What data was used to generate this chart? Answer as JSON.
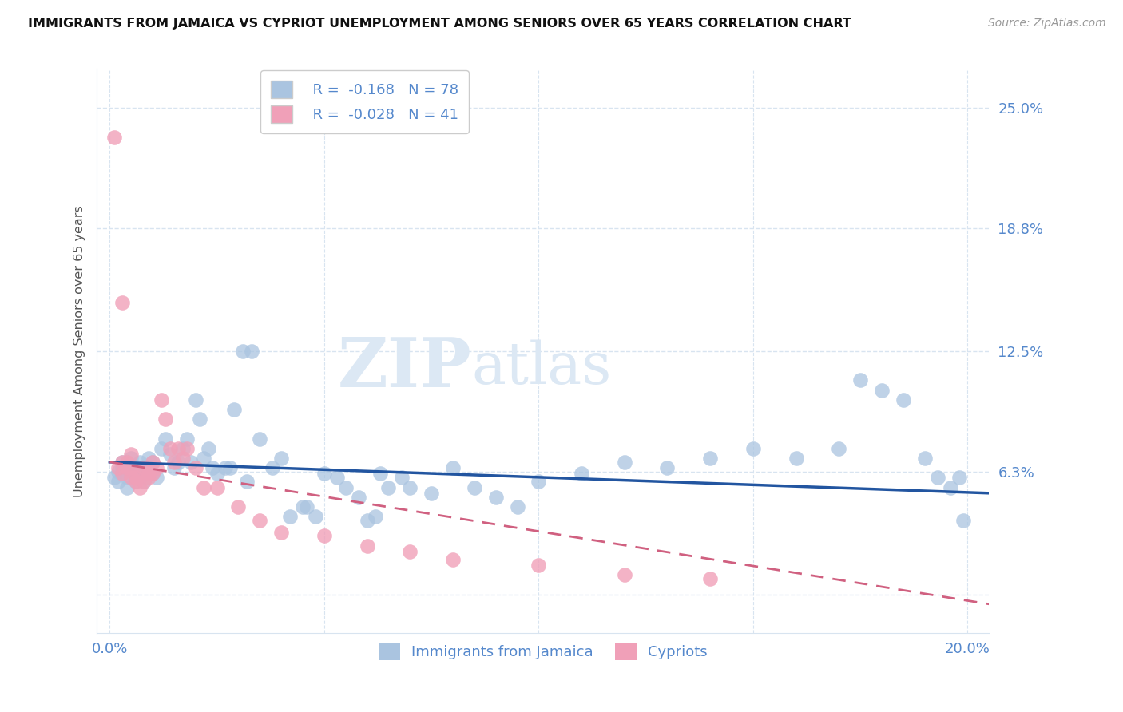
{
  "title": "IMMIGRANTS FROM JAMAICA VS CYPRIOT UNEMPLOYMENT AMONG SENIORS OVER 65 YEARS CORRELATION CHART",
  "source": "Source: ZipAtlas.com",
  "ylabel": "Unemployment Among Seniors over 65 years",
  "xlim": [
    -0.003,
    0.205
  ],
  "ylim": [
    -0.02,
    0.27
  ],
  "ytick_vals": [
    0.0,
    0.063,
    0.125,
    0.188,
    0.25
  ],
  "ytick_labels": [
    "",
    "6.3%",
    "12.5%",
    "18.8%",
    "25.0%"
  ],
  "xtick_vals": [
    0.0,
    0.2
  ],
  "xtick_labels": [
    "0.0%",
    "20.0%"
  ],
  "legend_r1": "R =  -0.168",
  "legend_n1": "N = 78",
  "legend_r2": "R =  -0.028",
  "legend_n2": "N = 41",
  "blue_color": "#aac4e0",
  "blue_line_color": "#2255a0",
  "pink_color": "#f0a0b8",
  "pink_line_color": "#d06080",
  "tick_label_color": "#5588cc",
  "grid_color": "#d8e4f0",
  "watermark_color": "#dce8f4",
  "blue_scatter_x": [
    0.001,
    0.002,
    0.002,
    0.003,
    0.003,
    0.004,
    0.004,
    0.005,
    0.005,
    0.006,
    0.006,
    0.007,
    0.007,
    0.008,
    0.008,
    0.009,
    0.009,
    0.01,
    0.01,
    0.011,
    0.012,
    0.013,
    0.014,
    0.015,
    0.016,
    0.017,
    0.018,
    0.019,
    0.02,
    0.021,
    0.022,
    0.023,
    0.024,
    0.025,
    0.027,
    0.029,
    0.031,
    0.033,
    0.035,
    0.038,
    0.04,
    0.042,
    0.045,
    0.048,
    0.05,
    0.053,
    0.055,
    0.058,
    0.06,
    0.063,
    0.065,
    0.068,
    0.07,
    0.075,
    0.08,
    0.085,
    0.09,
    0.095,
    0.1,
    0.11,
    0.12,
    0.13,
    0.14,
    0.15,
    0.16,
    0.17,
    0.175,
    0.18,
    0.185,
    0.19,
    0.193,
    0.196,
    0.198,
    0.199,
    0.028,
    0.032,
    0.046,
    0.062
  ],
  "blue_scatter_y": [
    0.06,
    0.063,
    0.058,
    0.065,
    0.068,
    0.06,
    0.055,
    0.062,
    0.07,
    0.058,
    0.065,
    0.06,
    0.068,
    0.062,
    0.058,
    0.065,
    0.07,
    0.062,
    0.068,
    0.06,
    0.075,
    0.08,
    0.072,
    0.065,
    0.068,
    0.075,
    0.08,
    0.068,
    0.1,
    0.09,
    0.07,
    0.075,
    0.065,
    0.062,
    0.065,
    0.095,
    0.125,
    0.125,
    0.08,
    0.065,
    0.07,
    0.04,
    0.045,
    0.04,
    0.062,
    0.06,
    0.055,
    0.05,
    0.038,
    0.062,
    0.055,
    0.06,
    0.055,
    0.052,
    0.065,
    0.055,
    0.05,
    0.045,
    0.058,
    0.062,
    0.068,
    0.065,
    0.07,
    0.075,
    0.07,
    0.075,
    0.11,
    0.105,
    0.1,
    0.07,
    0.06,
    0.055,
    0.06,
    0.038,
    0.065,
    0.058,
    0.045,
    0.04
  ],
  "pink_scatter_x": [
    0.001,
    0.002,
    0.003,
    0.003,
    0.004,
    0.004,
    0.005,
    0.005,
    0.005,
    0.006,
    0.006,
    0.007,
    0.007,
    0.008,
    0.008,
    0.009,
    0.009,
    0.01,
    0.01,
    0.011,
    0.012,
    0.013,
    0.014,
    0.015,
    0.016,
    0.017,
    0.018,
    0.02,
    0.022,
    0.025,
    0.03,
    0.035,
    0.04,
    0.05,
    0.06,
    0.07,
    0.08,
    0.1,
    0.12,
    0.14,
    0.003
  ],
  "pink_scatter_y": [
    0.235,
    0.065,
    0.068,
    0.062,
    0.065,
    0.068,
    0.065,
    0.06,
    0.072,
    0.06,
    0.058,
    0.062,
    0.055,
    0.065,
    0.058,
    0.06,
    0.062,
    0.068,
    0.062,
    0.065,
    0.1,
    0.09,
    0.075,
    0.068,
    0.075,
    0.07,
    0.075,
    0.065,
    0.055,
    0.055,
    0.045,
    0.038,
    0.032,
    0.03,
    0.025,
    0.022,
    0.018,
    0.015,
    0.01,
    0.008,
    0.15
  ],
  "blue_line_x0": 0.0,
  "blue_line_x1": 0.205,
  "blue_line_y0": 0.068,
  "blue_line_y1": 0.052,
  "pink_line_x0": 0.0,
  "pink_line_x1": 0.205,
  "pink_line_y0": 0.068,
  "pink_line_y1": -0.005
}
